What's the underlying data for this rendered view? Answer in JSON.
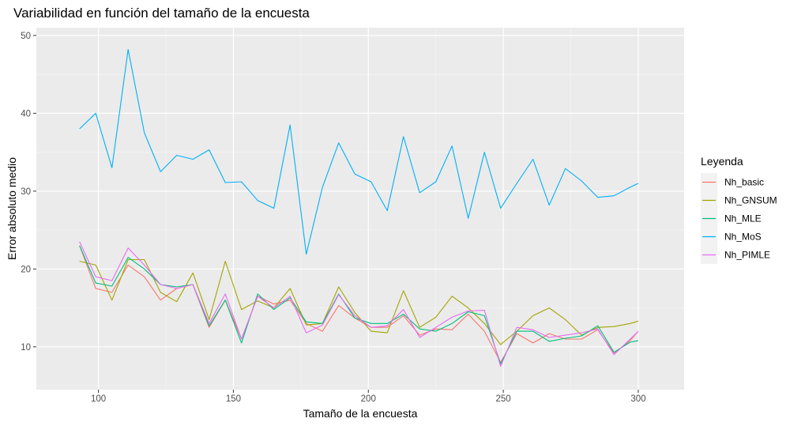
{
  "chart_data": {
    "type": "line",
    "title": "Variabilidad en función del tamaño de la encuesta",
    "xlabel": "Tamaño de la encuesta",
    "ylabel": "Error absoluto medio",
    "xlim": [
      77,
      317
    ],
    "ylim": [
      4.5,
      51
    ],
    "xticks": [
      100,
      150,
      200,
      250,
      300
    ],
    "yticks": [
      10,
      20,
      30,
      40,
      50
    ],
    "grid": true,
    "legend_position": "right",
    "legend_title": "Leyenda",
    "x": [
      93,
      99,
      105,
      111,
      117,
      123,
      129,
      135,
      141,
      147,
      153,
      159,
      165,
      171,
      177,
      183,
      189,
      195,
      201,
      207,
      213,
      219,
      225,
      231,
      237,
      243,
      249,
      255,
      261,
      267,
      273,
      279,
      285,
      291,
      297,
      300
    ],
    "series": [
      {
        "name": "Nh_basic",
        "color": "#F8766D",
        "values": [
          23.0,
          17.5,
          17.0,
          20.5,
          19.0,
          16.0,
          17.5,
          18.0,
          12.5,
          16.0,
          11.0,
          16.5,
          15.5,
          16.0,
          13.0,
          12.0,
          15.3,
          13.7,
          12.5,
          12.5,
          14.0,
          11.5,
          12.3,
          12.2,
          14.2,
          12.0,
          8.0,
          11.7,
          10.5,
          11.7,
          11.0,
          11.0,
          12.2,
          9.2,
          10.8,
          12.0
        ]
      },
      {
        "name": "Nh_GNSUM",
        "color": "#A3A500",
        "values": [
          21.0,
          20.5,
          16.0,
          21.2,
          21.2,
          17.0,
          15.8,
          19.5,
          13.5,
          21.0,
          14.8,
          15.9,
          15.0,
          17.5,
          12.8,
          13.0,
          17.7,
          14.4,
          12.0,
          11.8,
          17.2,
          12.5,
          13.8,
          16.5,
          15.0,
          13.0,
          10.3,
          12.0,
          14.0,
          15.0,
          13.5,
          11.5,
          12.5,
          12.6,
          13.0,
          13.3
        ]
      },
      {
        "name": "Nh_MLE",
        "color": "#00BF7D",
        "values": [
          23.0,
          18.2,
          17.8,
          21.5,
          20.0,
          18.0,
          17.7,
          18.0,
          12.7,
          16.0,
          10.5,
          16.8,
          14.8,
          16.3,
          13.2,
          13.0,
          16.8,
          13.7,
          13.0,
          13.0,
          14.2,
          12.3,
          12.0,
          13.0,
          14.5,
          14.0,
          7.8,
          12.0,
          12.0,
          10.7,
          11.1,
          11.4,
          12.7,
          9.3,
          10.6,
          10.8
        ]
      },
      {
        "name": "Nh_MoS",
        "color": "#00B0F6",
        "values": [
          38.0,
          40.0,
          33.0,
          48.2,
          37.5,
          32.5,
          34.6,
          34.1,
          35.3,
          31.1,
          31.2,
          28.8,
          27.8,
          38.5,
          21.9,
          30.5,
          36.2,
          32.2,
          31.2,
          27.5,
          37.0,
          29.8,
          31.2,
          35.8,
          26.5,
          35.0,
          27.8,
          31.0,
          34.1,
          28.2,
          32.9,
          31.3,
          29.2,
          29.4,
          30.5,
          31.0
        ]
      },
      {
        "name": "Nh_PIMLE",
        "color": "#E76BF3",
        "values": [
          23.5,
          19.0,
          18.5,
          22.7,
          20.5,
          18.0,
          17.5,
          18.0,
          13.0,
          16.8,
          11.0,
          16.5,
          15.0,
          16.5,
          11.8,
          12.8,
          16.7,
          14.0,
          12.5,
          12.7,
          14.8,
          11.2,
          12.5,
          13.8,
          14.6,
          14.7,
          7.5,
          12.5,
          12.2,
          11.2,
          11.5,
          11.8,
          12.3,
          9.0,
          11.0,
          12.0
        ]
      }
    ]
  }
}
